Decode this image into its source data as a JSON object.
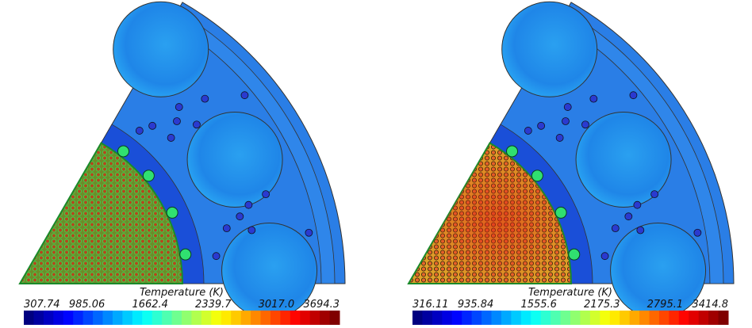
{
  "panels": [
    {
      "colorbar": {
        "title": "Temperature (K)",
        "ticks": [
          "307.74",
          "985.06",
          "1662.4",
          "2339.7",
          "3017.0",
          "3694.3"
        ]
      }
    },
    {
      "colorbar": {
        "title": "Temperature (K)",
        "ticks": [
          "316.11",
          "935.84",
          "1555.6",
          "2175.3",
          "2795.1",
          "3414.8"
        ]
      }
    }
  ]
}
